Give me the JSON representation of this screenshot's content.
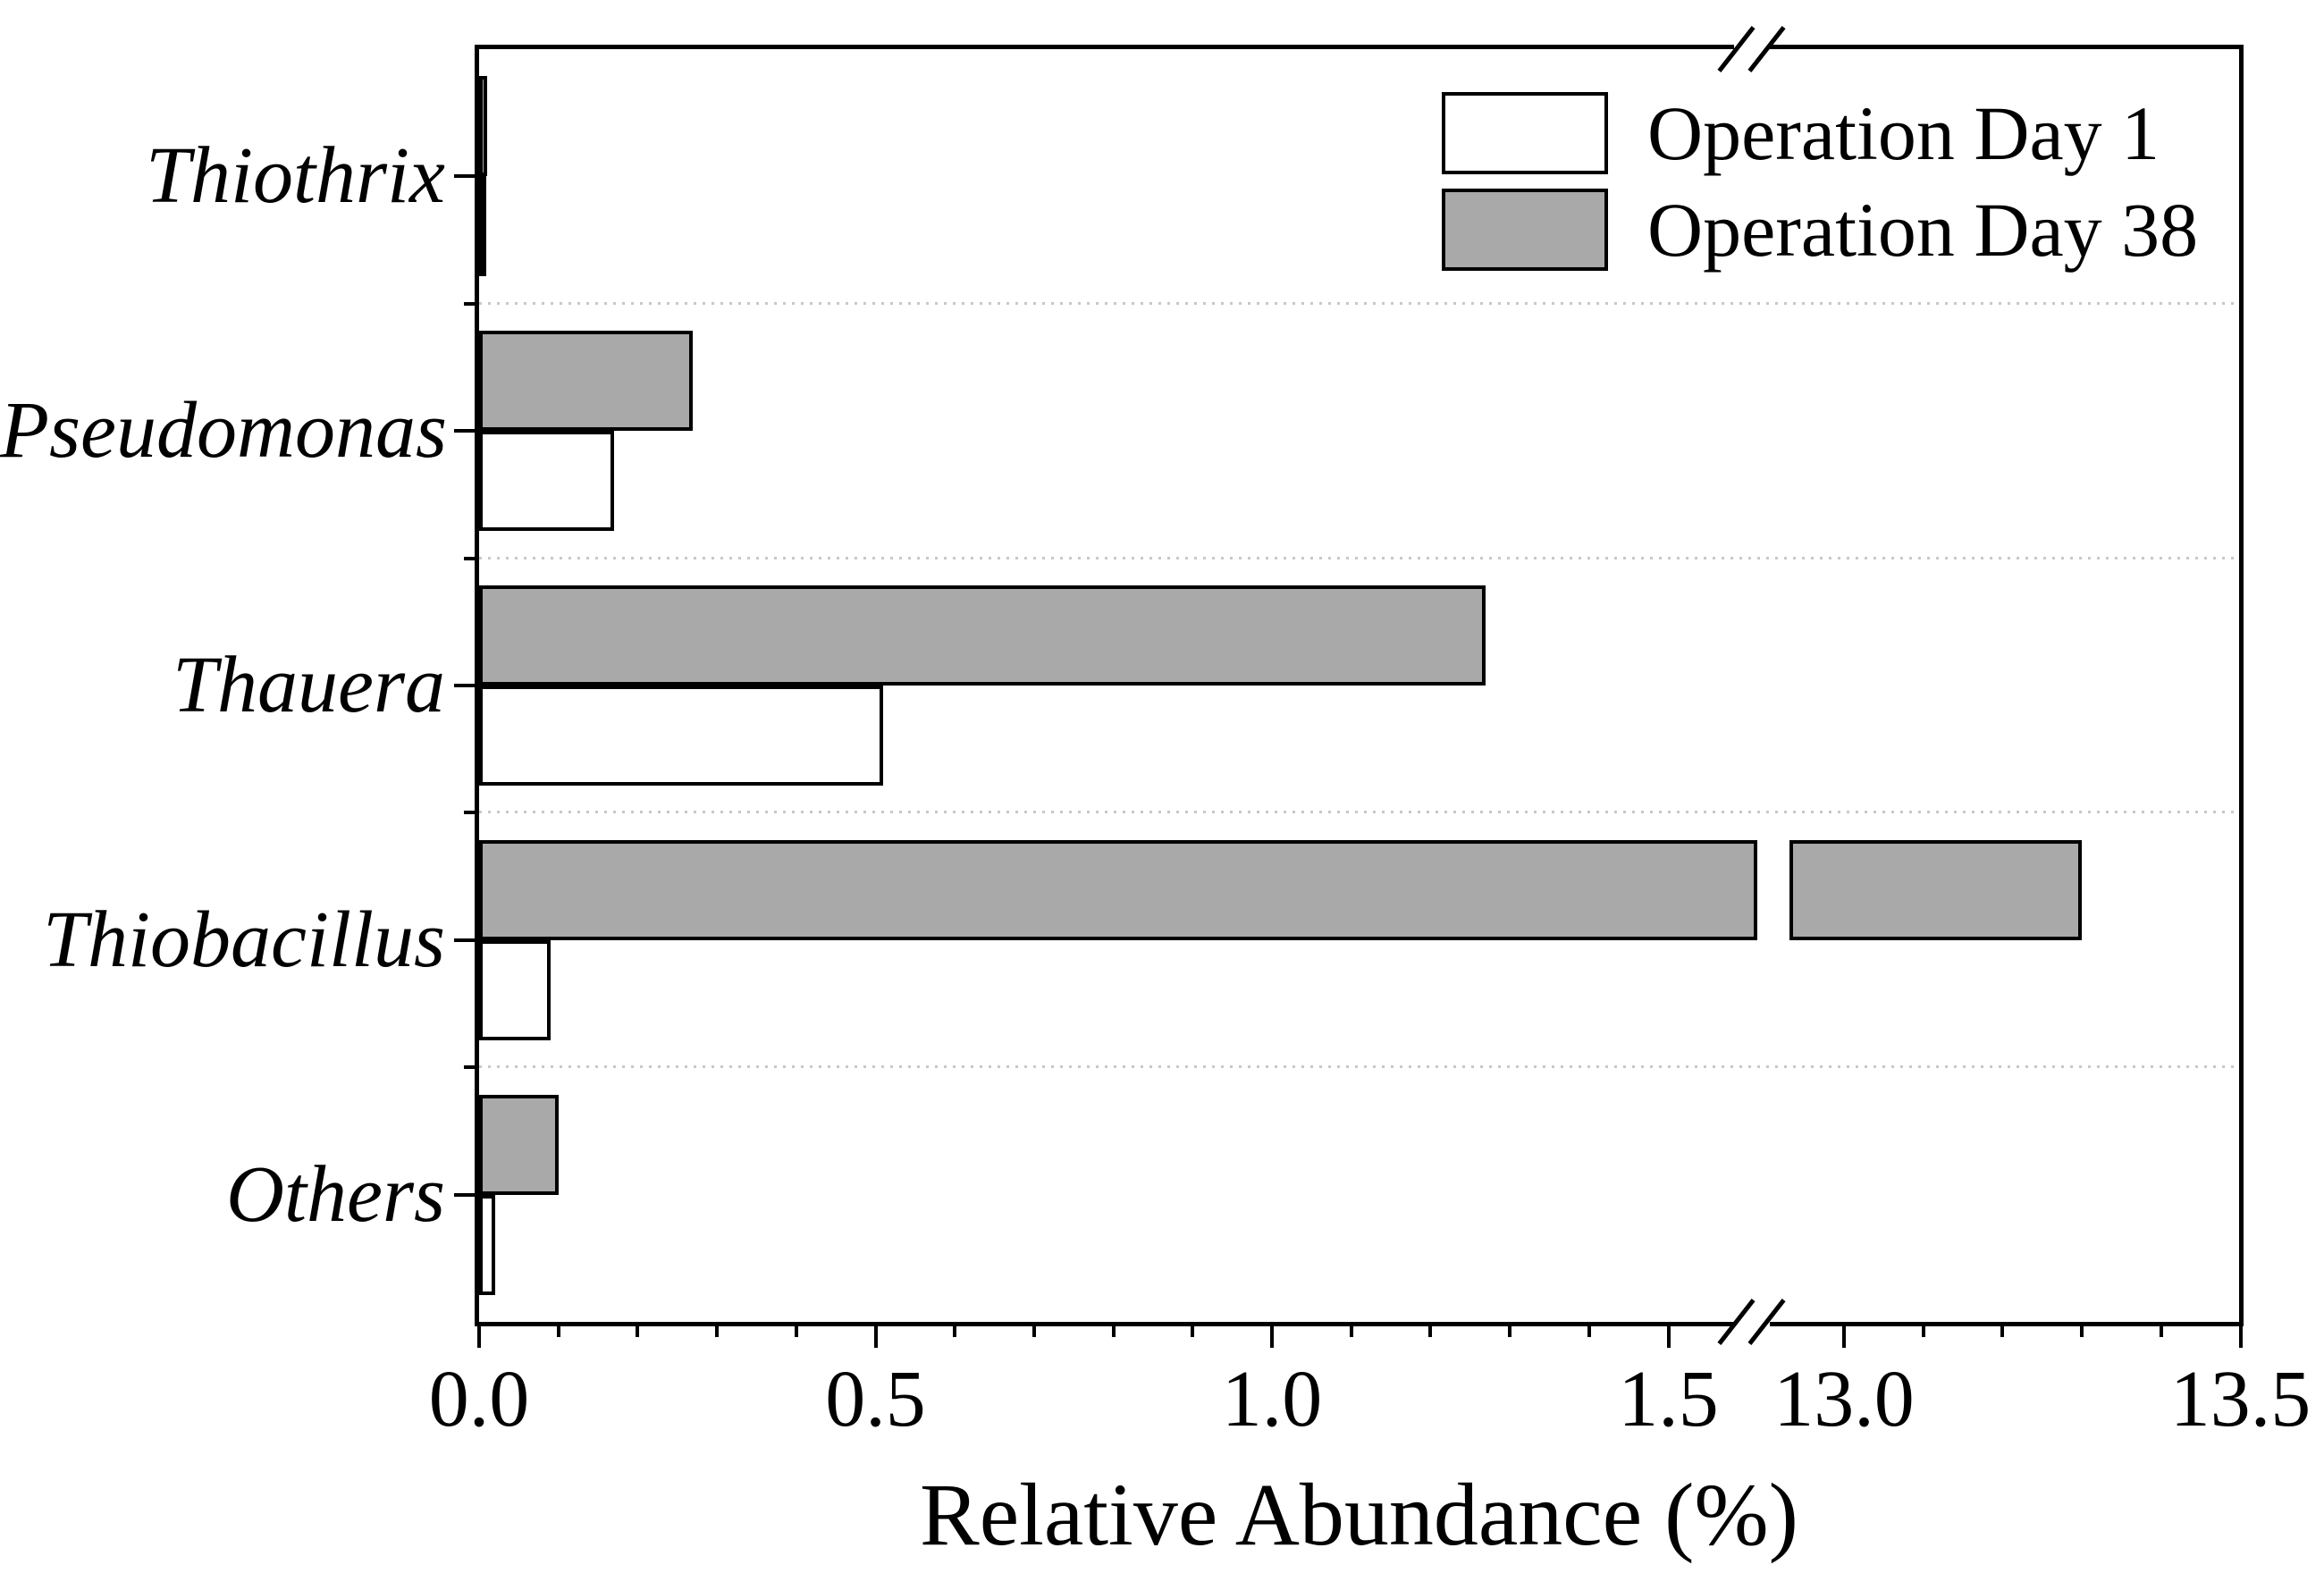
{
  "chart_data": {
    "type": "bar",
    "orientation": "horizontal",
    "title": "",
    "xlabel": "Relative Abundance (%)",
    "ylabel": "",
    "categories": [
      "Thiothrix",
      "Pseudomonas",
      "Thauera",
      "Thiobacillus",
      "Others"
    ],
    "series": [
      {
        "name": "Operation Day 1",
        "color": "#ffffff",
        "values": [
          0.005,
          0.17,
          0.51,
          0.09,
          0.02
        ]
      },
      {
        "name": "Operation Day 38",
        "color": "#a9a9a9",
        "values": [
          0.01,
          0.27,
          1.27,
          13.3,
          0.1
        ]
      }
    ],
    "x_ticks": [
      {
        "label": "0.0",
        "value": 0.0
      },
      {
        "label": "0.5",
        "value": 0.5
      },
      {
        "label": "1.0",
        "value": 1.0
      },
      {
        "label": "1.5",
        "value": 1.5
      },
      {
        "label": "13.0",
        "value": 13.0
      },
      {
        "label": "13.5",
        "value": 13.5
      }
    ],
    "minor_tick_step": 0.1,
    "axis_break": {
      "after_value": 1.5,
      "resume_value": 13.0
    },
    "xlim": [
      0.0,
      13.5
    ],
    "grid": "dotted horizontal category separators",
    "legend_position": "top-right-inside",
    "bar_outline_color": "#000000",
    "separator_color": "#c8c8c8",
    "background_color": "#ffffff"
  }
}
